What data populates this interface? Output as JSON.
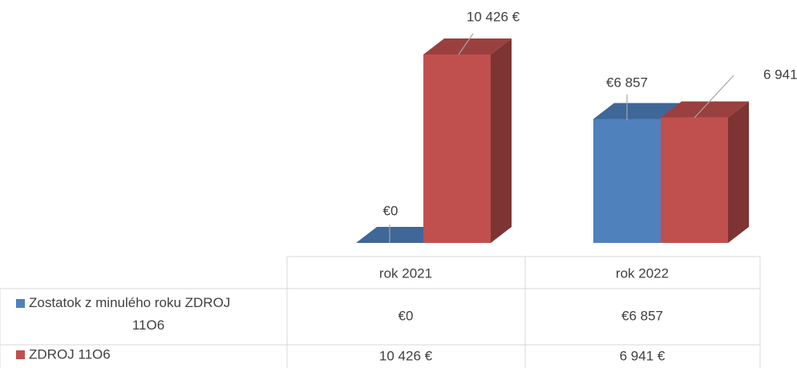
{
  "chart_data": {
    "type": "bar3d",
    "categories": [
      "rok 2021",
      "rok 2022"
    ],
    "series": [
      {
        "name": "Zostatok z minulého roku ZDROJ 11O6",
        "color": "#4f81bd",
        "values": [
          0,
          6857
        ],
        "value_labels": [
          "€0",
          "€6 857"
        ]
      },
      {
        "name": "ZDROJ 11O6",
        "color": "#c0504d",
        "values": [
          10426,
          6941
        ],
        "value_labels": [
          "10 426 €",
          "6 941 €"
        ]
      }
    ]
  }
}
